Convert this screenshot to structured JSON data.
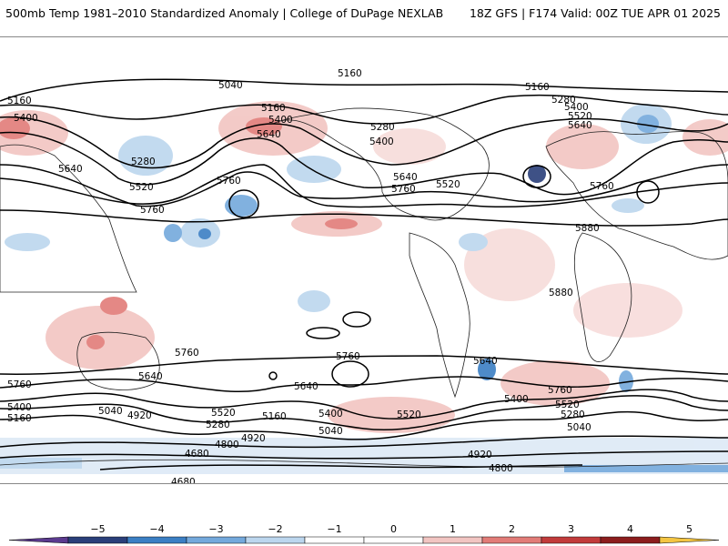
{
  "header": {
    "title_left": "500mb Temp 1981–2010 Standardized Anomaly | College of DuPage NEXLAB",
    "title_right": "18Z GFS | F174 Valid: 00Z TUE APR 01 2025"
  },
  "contour_labels": [
    "5040",
    "5160",
    "5160",
    "5160",
    "5400",
    "5160",
    "5400",
    "5640",
    "5280",
    "5520",
    "5640",
    "5760",
    "5760",
    "5280",
    "5400",
    "5640",
    "5760",
    "5520",
    "5280",
    "5400",
    "5520",
    "5640",
    "5760",
    "5880",
    "5880",
    "5760",
    "5760",
    "5640",
    "5640",
    "5760",
    "5640",
    "5400",
    "5520",
    "5760",
    "5400",
    "5520",
    "5280",
    "5160",
    "5040",
    "5400",
    "5040",
    "4920",
    "5520",
    "5280",
    "5160",
    "5040",
    "4920",
    "4800",
    "4680",
    "4680",
    "4920",
    "4800"
  ],
  "colorbar": {
    "ticks": [
      "−5",
      "−4",
      "−3",
      "−2",
      "−1",
      "0",
      "1",
      "2",
      "3",
      "4",
      "5"
    ],
    "colors": [
      "#5b3a8f",
      "#2a3f7a",
      "#3b7fc4",
      "#74a9dc",
      "#bcd6ee",
      "#ffffff",
      "#ffffff",
      "#f2c5c2",
      "#e27c78",
      "#c23b3b",
      "#8c1d1d",
      "#f4c542"
    ]
  },
  "icons": {
    "color_scale_left_arrow": "triangle-left",
    "color_scale_right_arrow": "triangle-right"
  }
}
